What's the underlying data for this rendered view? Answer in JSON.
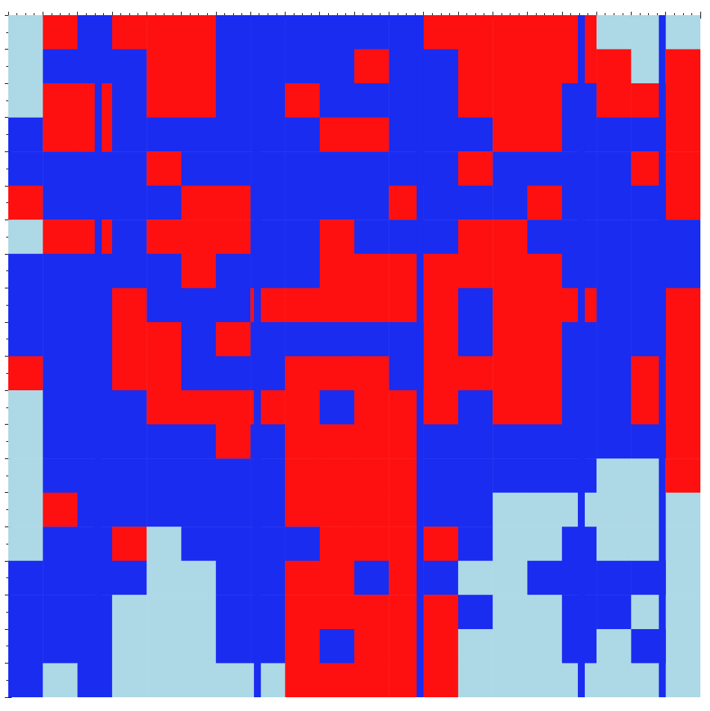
{
  "chart_data": {
    "type": "grid_map",
    "xlim": [
      0,
      20
    ],
    "ylim": [
      0,
      20
    ],
    "xticks": [
      0,
      1,
      2,
      3,
      4,
      5,
      6,
      7,
      8,
      9,
      10,
      11,
      12,
      13,
      14,
      15,
      16,
      17,
      18,
      19,
      20
    ],
    "yticks": [
      0,
      1,
      2,
      3,
      4,
      5,
      6,
      7,
      8,
      9,
      10,
      11,
      12,
      13,
      14,
      15,
      16,
      17,
      18,
      19,
      20
    ],
    "tick_labels": false,
    "colors": [
      "#add8e6",
      "#1a2cf0",
      "#ff1010"
    ],
    "stripes": [
      2.6,
      7.2,
      11.9,
      16.56,
      18.9
    ],
    "cells": [
      [
        0,
        2,
        1,
        2,
        2,
        2,
        1,
        1,
        1,
        1,
        1,
        1,
        2,
        2,
        2,
        2,
        2,
        0,
        0,
        0
      ],
      [
        0,
        1,
        1,
        1,
        2,
        2,
        1,
        1,
        1,
        1,
        2,
        1,
        1,
        2,
        2,
        2,
        2,
        2,
        0,
        2
      ],
      [
        0,
        2,
        2,
        1,
        2,
        2,
        1,
        1,
        2,
        1,
        1,
        1,
        1,
        2,
        2,
        2,
        1,
        2,
        2,
        2
      ],
      [
        1,
        2,
        2,
        1,
        1,
        1,
        1,
        1,
        1,
        2,
        2,
        1,
        1,
        1,
        2,
        2,
        1,
        1,
        1,
        2
      ],
      [
        1,
        1,
        1,
        1,
        2,
        1,
        1,
        1,
        1,
        1,
        1,
        1,
        1,
        2,
        1,
        1,
        1,
        1,
        2,
        2
      ],
      [
        2,
        1,
        1,
        1,
        1,
        2,
        2,
        1,
        1,
        1,
        1,
        2,
        1,
        1,
        1,
        2,
        1,
        1,
        1,
        2
      ],
      [
        0,
        2,
        2,
        1,
        2,
        2,
        2,
        1,
        1,
        2,
        1,
        1,
        1,
        2,
        2,
        1,
        1,
        1,
        1,
        1
      ],
      [
        1,
        1,
        1,
        1,
        1,
        2,
        1,
        1,
        1,
        2,
        2,
        2,
        2,
        2,
        2,
        2,
        1,
        1,
        1,
        1
      ],
      [
        1,
        1,
        1,
        2,
        1,
        1,
        1,
        2,
        2,
        2,
        2,
        2,
        2,
        1,
        2,
        2,
        2,
        1,
        1,
        2
      ],
      [
        1,
        1,
        1,
        2,
        2,
        1,
        2,
        1,
        1,
        1,
        1,
        1,
        2,
        1,
        2,
        2,
        1,
        1,
        1,
        2
      ],
      [
        2,
        1,
        1,
        2,
        2,
        1,
        1,
        1,
        2,
        2,
        2,
        1,
        2,
        2,
        2,
        2,
        1,
        1,
        2,
        2
      ],
      [
        0,
        1,
        1,
        1,
        2,
        2,
        2,
        2,
        2,
        1,
        2,
        2,
        2,
        1,
        2,
        2,
        1,
        1,
        2,
        2
      ],
      [
        0,
        1,
        1,
        1,
        1,
        1,
        2,
        1,
        2,
        2,
        2,
        2,
        1,
        1,
        1,
        1,
        1,
        1,
        1,
        2
      ],
      [
        0,
        1,
        1,
        1,
        1,
        1,
        1,
        1,
        2,
        2,
        2,
        2,
        1,
        1,
        1,
        1,
        1,
        0,
        0,
        2
      ],
      [
        0,
        2,
        1,
        1,
        1,
        1,
        1,
        1,
        2,
        2,
        2,
        2,
        1,
        1,
        0,
        0,
        0,
        0,
        0,
        0
      ],
      [
        0,
        1,
        1,
        2,
        0,
        1,
        1,
        1,
        1,
        2,
        2,
        2,
        2,
        1,
        0,
        0,
        1,
        0,
        0,
        0
      ],
      [
        1,
        1,
        1,
        1,
        0,
        0,
        1,
        1,
        2,
        2,
        1,
        2,
        1,
        0,
        0,
        1,
        1,
        1,
        1,
        0
      ],
      [
        1,
        1,
        1,
        0,
        0,
        0,
        1,
        1,
        2,
        2,
        2,
        2,
        2,
        1,
        0,
        0,
        1,
        1,
        0,
        0
      ],
      [
        1,
        1,
        1,
        0,
        0,
        0,
        1,
        1,
        2,
        1,
        2,
        2,
        2,
        0,
        0,
        0,
        1,
        0,
        1,
        0
      ],
      [
        1,
        0,
        1,
        0,
        0,
        0,
        0,
        0,
        2,
        2,
        2,
        2,
        2,
        0,
        0,
        0,
        0,
        0,
        0,
        0
      ]
    ]
  }
}
